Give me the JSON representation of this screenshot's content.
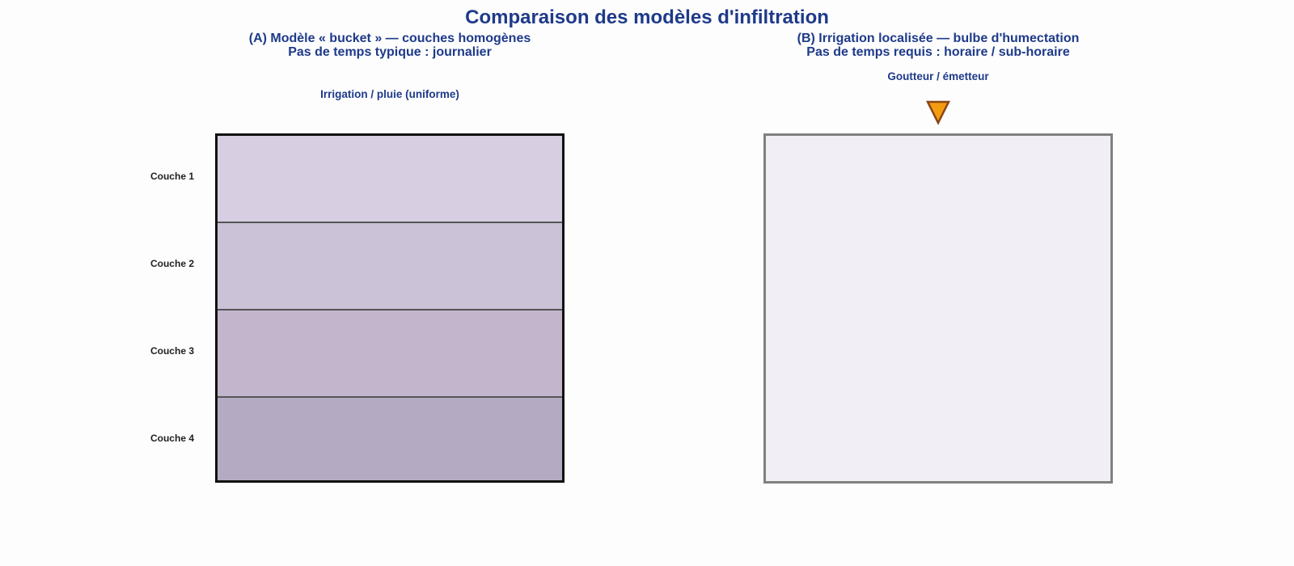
{
  "title": "Comparaison des modèles d'infiltration",
  "panel_a": {
    "title_line1": "(A) Modèle « bucket » — couches homogènes",
    "title_line2": "Pas de temps typique : journalier",
    "input_caption": "Irrigation / pluie (uniforme)",
    "layers": [
      "Couche 1",
      "Couche 2",
      "Couche 3",
      "Couche 4"
    ]
  },
  "panel_b": {
    "title_line1": "(B) Irrigation localisée — bulbe d'humectation",
    "title_line2": "Pas de temps requis : horaire / sub-horaire",
    "emitter_caption": "Goutteur / émetteur",
    "emitter_icon": "downward-triangle-icon"
  },
  "colors": {
    "title": "#1e3a8a",
    "layer1": "#d7cee2",
    "layer2": "#cbc2d7",
    "layer3": "#c2b5cc",
    "layer4": "#b4aac2",
    "soil_box": "#f1eef5",
    "emitter_fill": "#f39c12",
    "emitter_stroke": "#8b4513"
  }
}
